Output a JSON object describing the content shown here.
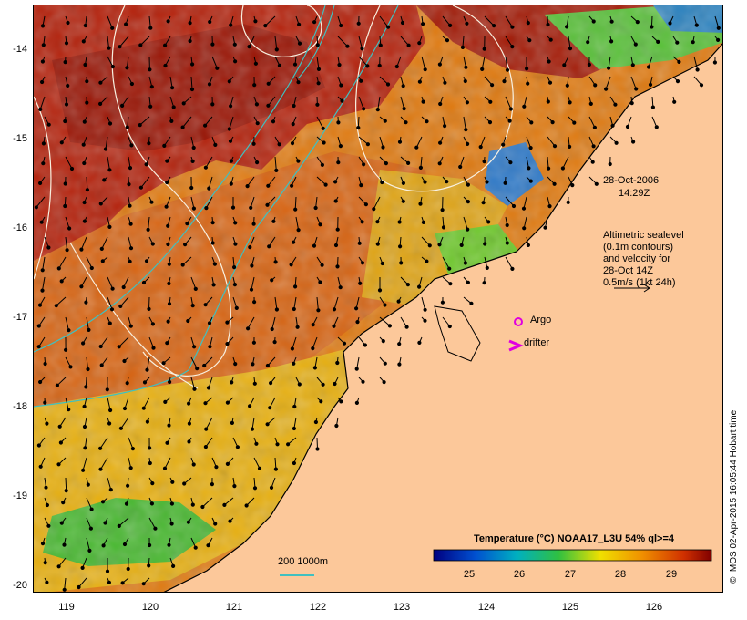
{
  "map": {
    "product": "Temperature (°C) NOAA17_L3U 54% ql>=4",
    "date_line1": "28-Oct-2006",
    "date_line2": "14:29Z",
    "altimetry_note": [
      "Altimetric sealevel",
      "(0.1m contours)",
      "and velocity for",
      "28-Oct 14Z",
      "0.5m/s (1kt 24h)"
    ],
    "legend_argo": "Argo",
    "legend_drifter": "drifter",
    "bathy_legend": "200  1000m",
    "credit": "© IMOS 02-Apr-2015 16:05:44 Hobart time",
    "lat_ticks": [
      "-14",
      "-15",
      "-16",
      "-17",
      "-18",
      "-19",
      "-20"
    ],
    "lon_ticks": [
      "119",
      "120",
      "121",
      "122",
      "123",
      "124",
      "125",
      "126"
    ],
    "colorbar_ticks": [
      "25",
      "26",
      "27",
      "28",
      "29"
    ],
    "colors": {
      "land": "#fcc89a",
      "sst_hot": "#b01c08",
      "sst_warm": "#e07010",
      "sst_mid": "#f0c000",
      "sst_cool": "#40c030",
      "sst_cold": "#1060c0",
      "contour": "#f8f0e0",
      "isobath": "#40c0c0",
      "argo": "#e000e0"
    }
  }
}
